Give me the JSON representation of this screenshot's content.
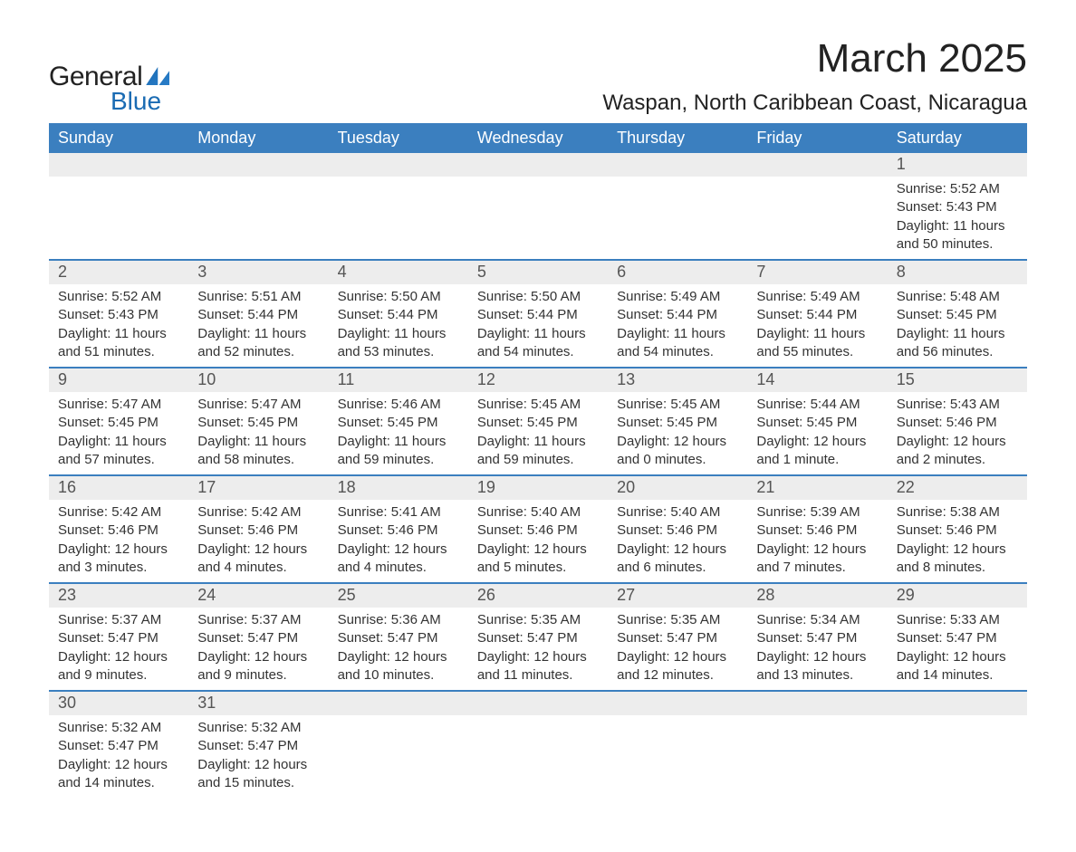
{
  "logo": {
    "text_top": "General",
    "text_bottom": "Blue"
  },
  "title": "March 2025",
  "location": "Waspan, North Caribbean Coast, Nicaragua",
  "weekdays": [
    "Sunday",
    "Monday",
    "Tuesday",
    "Wednesday",
    "Thursday",
    "Friday",
    "Saturday"
  ],
  "colors": {
    "header_bg": "#3b7fbf",
    "header_text": "#ffffff",
    "daynum_bg": "#ededed",
    "row_divider": "#3b7fbf",
    "body_text": "#333333",
    "logo_blue": "#1a6bb3"
  },
  "weeks": [
    [
      {
        "day": "",
        "lines": []
      },
      {
        "day": "",
        "lines": []
      },
      {
        "day": "",
        "lines": []
      },
      {
        "day": "",
        "lines": []
      },
      {
        "day": "",
        "lines": []
      },
      {
        "day": "",
        "lines": []
      },
      {
        "day": "1",
        "lines": [
          "Sunrise: 5:52 AM",
          "Sunset: 5:43 PM",
          "Daylight: 11 hours and 50 minutes."
        ]
      }
    ],
    [
      {
        "day": "2",
        "lines": [
          "Sunrise: 5:52 AM",
          "Sunset: 5:43 PM",
          "Daylight: 11 hours and 51 minutes."
        ]
      },
      {
        "day": "3",
        "lines": [
          "Sunrise: 5:51 AM",
          "Sunset: 5:44 PM",
          "Daylight: 11 hours and 52 minutes."
        ]
      },
      {
        "day": "4",
        "lines": [
          "Sunrise: 5:50 AM",
          "Sunset: 5:44 PM",
          "Daylight: 11 hours and 53 minutes."
        ]
      },
      {
        "day": "5",
        "lines": [
          "Sunrise: 5:50 AM",
          "Sunset: 5:44 PM",
          "Daylight: 11 hours and 54 minutes."
        ]
      },
      {
        "day": "6",
        "lines": [
          "Sunrise: 5:49 AM",
          "Sunset: 5:44 PM",
          "Daylight: 11 hours and 54 minutes."
        ]
      },
      {
        "day": "7",
        "lines": [
          "Sunrise: 5:49 AM",
          "Sunset: 5:44 PM",
          "Daylight: 11 hours and 55 minutes."
        ]
      },
      {
        "day": "8",
        "lines": [
          "Sunrise: 5:48 AM",
          "Sunset: 5:45 PM",
          "Daylight: 11 hours and 56 minutes."
        ]
      }
    ],
    [
      {
        "day": "9",
        "lines": [
          "Sunrise: 5:47 AM",
          "Sunset: 5:45 PM",
          "Daylight: 11 hours and 57 minutes."
        ]
      },
      {
        "day": "10",
        "lines": [
          "Sunrise: 5:47 AM",
          "Sunset: 5:45 PM",
          "Daylight: 11 hours and 58 minutes."
        ]
      },
      {
        "day": "11",
        "lines": [
          "Sunrise: 5:46 AM",
          "Sunset: 5:45 PM",
          "Daylight: 11 hours and 59 minutes."
        ]
      },
      {
        "day": "12",
        "lines": [
          "Sunrise: 5:45 AM",
          "Sunset: 5:45 PM",
          "Daylight: 11 hours and 59 minutes."
        ]
      },
      {
        "day": "13",
        "lines": [
          "Sunrise: 5:45 AM",
          "Sunset: 5:45 PM",
          "Daylight: 12 hours and 0 minutes."
        ]
      },
      {
        "day": "14",
        "lines": [
          "Sunrise: 5:44 AM",
          "Sunset: 5:45 PM",
          "Daylight: 12 hours and 1 minute."
        ]
      },
      {
        "day": "15",
        "lines": [
          "Sunrise: 5:43 AM",
          "Sunset: 5:46 PM",
          "Daylight: 12 hours and 2 minutes."
        ]
      }
    ],
    [
      {
        "day": "16",
        "lines": [
          "Sunrise: 5:42 AM",
          "Sunset: 5:46 PM",
          "Daylight: 12 hours and 3 minutes."
        ]
      },
      {
        "day": "17",
        "lines": [
          "Sunrise: 5:42 AM",
          "Sunset: 5:46 PM",
          "Daylight: 12 hours and 4 minutes."
        ]
      },
      {
        "day": "18",
        "lines": [
          "Sunrise: 5:41 AM",
          "Sunset: 5:46 PM",
          "Daylight: 12 hours and 4 minutes."
        ]
      },
      {
        "day": "19",
        "lines": [
          "Sunrise: 5:40 AM",
          "Sunset: 5:46 PM",
          "Daylight: 12 hours and 5 minutes."
        ]
      },
      {
        "day": "20",
        "lines": [
          "Sunrise: 5:40 AM",
          "Sunset: 5:46 PM",
          "Daylight: 12 hours and 6 minutes."
        ]
      },
      {
        "day": "21",
        "lines": [
          "Sunrise: 5:39 AM",
          "Sunset: 5:46 PM",
          "Daylight: 12 hours and 7 minutes."
        ]
      },
      {
        "day": "22",
        "lines": [
          "Sunrise: 5:38 AM",
          "Sunset: 5:46 PM",
          "Daylight: 12 hours and 8 minutes."
        ]
      }
    ],
    [
      {
        "day": "23",
        "lines": [
          "Sunrise: 5:37 AM",
          "Sunset: 5:47 PM",
          "Daylight: 12 hours and 9 minutes."
        ]
      },
      {
        "day": "24",
        "lines": [
          "Sunrise: 5:37 AM",
          "Sunset: 5:47 PM",
          "Daylight: 12 hours and 9 minutes."
        ]
      },
      {
        "day": "25",
        "lines": [
          "Sunrise: 5:36 AM",
          "Sunset: 5:47 PM",
          "Daylight: 12 hours and 10 minutes."
        ]
      },
      {
        "day": "26",
        "lines": [
          "Sunrise: 5:35 AM",
          "Sunset: 5:47 PM",
          "Daylight: 12 hours and 11 minutes."
        ]
      },
      {
        "day": "27",
        "lines": [
          "Sunrise: 5:35 AM",
          "Sunset: 5:47 PM",
          "Daylight: 12 hours and 12 minutes."
        ]
      },
      {
        "day": "28",
        "lines": [
          "Sunrise: 5:34 AM",
          "Sunset: 5:47 PM",
          "Daylight: 12 hours and 13 minutes."
        ]
      },
      {
        "day": "29",
        "lines": [
          "Sunrise: 5:33 AM",
          "Sunset: 5:47 PM",
          "Daylight: 12 hours and 14 minutes."
        ]
      }
    ],
    [
      {
        "day": "30",
        "lines": [
          "Sunrise: 5:32 AM",
          "Sunset: 5:47 PM",
          "Daylight: 12 hours and 14 minutes."
        ]
      },
      {
        "day": "31",
        "lines": [
          "Sunrise: 5:32 AM",
          "Sunset: 5:47 PM",
          "Daylight: 12 hours and 15 minutes."
        ]
      },
      {
        "day": "",
        "lines": []
      },
      {
        "day": "",
        "lines": []
      },
      {
        "day": "",
        "lines": []
      },
      {
        "day": "",
        "lines": []
      },
      {
        "day": "",
        "lines": []
      }
    ]
  ]
}
